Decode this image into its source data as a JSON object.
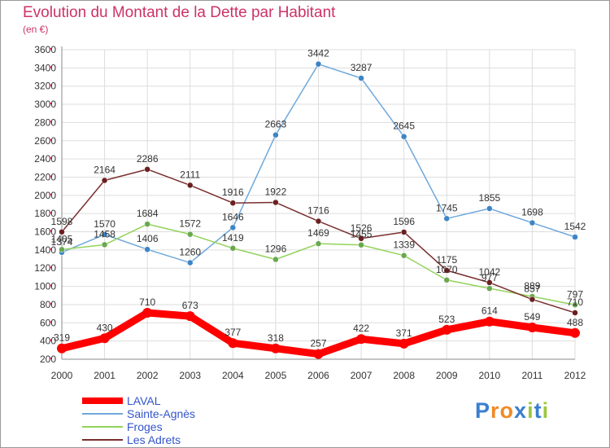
{
  "header": {
    "title": "Evolution du Montant de la Dette par Habitant",
    "subtitle": "(en €)"
  },
  "colors": {
    "title": "#cc3366",
    "axis_text": "#333333",
    "legend_text": "#3355cc",
    "grid": "#dddddd",
    "tick_marks": "#cc3366"
  },
  "brand": {
    "text": "Proxiti",
    "letters": [
      "P",
      "r",
      "o",
      "x",
      "i",
      "t",
      "i"
    ],
    "letter_colors": [
      "#3a7fd0",
      "#f08a24",
      "#f08a24",
      "#3a7fd0",
      "#9bc83a",
      "#3a7fd0",
      "#9bc83a"
    ]
  },
  "chart_data": {
    "type": "line",
    "x": [
      "2000",
      "2001",
      "2002",
      "2003",
      "2004",
      "2005",
      "2006",
      "2007",
      "2008",
      "2009",
      "2010",
      "2011",
      "2012"
    ],
    "ylim": [
      200,
      3600
    ],
    "yticks": [
      200,
      400,
      600,
      800,
      1000,
      1200,
      1400,
      1600,
      1800,
      2000,
      2200,
      2400,
      2600,
      2800,
      3000,
      3200,
      3400,
      3600
    ],
    "grid": true,
    "legend_position": "bottom-left",
    "series": [
      {
        "name": "LAVAL",
        "color": "#ff0000",
        "values": [
          319,
          430,
          710,
          673,
          377,
          318,
          257,
          422,
          371,
          523,
          614,
          549,
          488
        ],
        "labels": [
          "319",
          "430",
          "710",
          "673",
          "377",
          "318",
          "257",
          "422",
          "371",
          "523",
          "614",
          "549",
          "488"
        ]
      },
      {
        "name": "Sainte-Agnès",
        "color": "#6fa8dc",
        "marker": "#3d85c6",
        "values": [
          1374,
          1570,
          1406,
          1260,
          1646,
          2663,
          3442,
          3287,
          2645,
          1745,
          1855,
          1698,
          1542
        ],
        "labels": [
          "1374",
          "1570",
          "1406",
          "1260",
          "1646",
          "2663",
          "3442",
          "3287",
          "2645",
          "1745",
          "1855",
          "1698",
          "1542"
        ]
      },
      {
        "name": "Froges",
        "color": "#93d35a",
        "marker": "#6aa84f",
        "values": [
          1405,
          1458,
          1684,
          1572,
          1419,
          1296,
          1469,
          1455,
          1339,
          1070,
          977,
          889,
          797
        ],
        "labels": [
          "1405",
          "1458",
          "1684",
          "1572",
          "1419",
          "1296",
          "1469",
          "1455",
          "1339",
          "1070",
          "977",
          "889",
          "797"
        ]
      },
      {
        "name": "Les Adrets",
        "color": "#7a2e2e",
        "marker": "#6b1f1f",
        "values": [
          1598,
          2164,
          2286,
          2111,
          1916,
          1922,
          1716,
          1526,
          1596,
          1175,
          1042,
          857,
          710
        ],
        "labels": [
          "1598",
          "2164",
          "2286",
          "2111",
          "1916",
          "1922",
          "1716",
          "1526",
          "1596",
          "1175",
          "1042",
          "857",
          "710"
        ]
      }
    ]
  }
}
